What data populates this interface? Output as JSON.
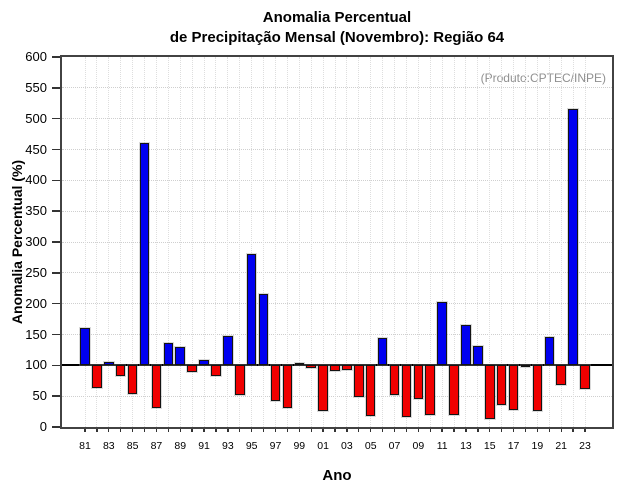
{
  "chart_data": {
    "type": "bar",
    "title_line1": "Anomalia Percentual",
    "title_line2": "de Precipitação Mensal (Novembro): Região 64",
    "annotation": "(Produto:CPTEC/INPE)",
    "xlabel": "Ano",
    "ylabel": "Anomalia Percentual (%)",
    "baseline": 100,
    "ylim": [
      0,
      600
    ],
    "grid": true,
    "legend_position": "none",
    "y_ticks": [
      0,
      50,
      100,
      150,
      200,
      250,
      300,
      350,
      400,
      450,
      500,
      550,
      600
    ],
    "x_tick_labels": [
      "81",
      "83",
      "85",
      "87",
      "89",
      "91",
      "93",
      "95",
      "97",
      "99",
      "01",
      "03",
      "05",
      "07",
      "09",
      "11",
      "13",
      "15",
      "17",
      "19",
      "21",
      "23"
    ],
    "years": [
      1981,
      1982,
      1983,
      1984,
      1985,
      1986,
      1987,
      1988,
      1989,
      1990,
      1991,
      1992,
      1993,
      1994,
      1995,
      1996,
      1997,
      1998,
      1999,
      2000,
      2001,
      2002,
      2003,
      2004,
      2005,
      2006,
      2007,
      2008,
      2009,
      2010,
      2011,
      2012,
      2013,
      2014,
      2015,
      2016,
      2017,
      2018,
      2019,
      2020,
      2021,
      2022,
      2023
    ],
    "values": [
      160,
      64,
      105,
      82,
      53,
      460,
      30,
      136,
      129,
      89,
      108,
      83,
      147,
      52,
      281,
      215,
      42,
      31,
      104,
      96,
      26,
      90,
      92,
      48,
      18,
      144,
      52,
      16,
      46,
      19,
      202,
      20,
      166,
      131,
      13,
      36,
      27,
      98,
      26,
      146,
      68,
      515,
      61
    ],
    "bar_color_above_baseline": "#0000f0",
    "bar_color_below_baseline": "#f00000"
  }
}
